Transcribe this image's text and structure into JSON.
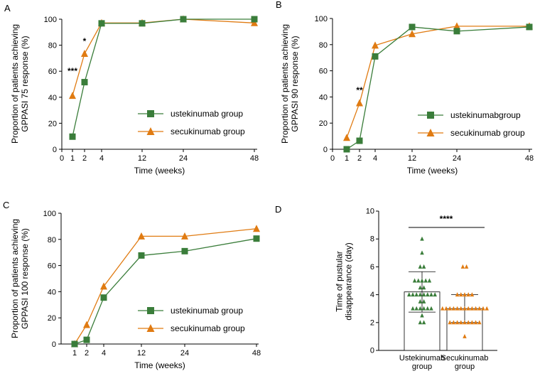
{
  "colors": {
    "ustekinumab": "#3a7d3a",
    "secukinumab": "#e07b12",
    "axis": "#000000"
  },
  "chart_data": [
    {
      "panel": "A",
      "type": "line",
      "ylabel": "Proportion of patients achieving\nGPPASI 75 response (%)",
      "xlabel": "Time (weeks)",
      "ylim": [
        0,
        100
      ],
      "y_ticks": [
        0,
        20,
        40,
        60,
        80,
        100
      ],
      "x_ticks": [
        0,
        1,
        2,
        4,
        12,
        24,
        48
      ],
      "x": [
        1,
        2,
        4,
        12,
        24,
        48
      ],
      "series": [
        {
          "name": "ustekinumab group",
          "marker": "square",
          "values": [
            9.7,
            51.6,
            96.8,
            96.8,
            100,
            100
          ]
        },
        {
          "name": "secukinumab group",
          "marker": "triangle",
          "values": [
            41.2,
            73.5,
            97.1,
            97.1,
            100,
            97.1
          ]
        }
      ],
      "annotations": [
        {
          "text": "***",
          "x": 1,
          "y": 60
        },
        {
          "text": "*",
          "x": 2,
          "y": 83
        }
      ],
      "legend": "bottom-right"
    },
    {
      "panel": "B",
      "type": "line",
      "ylabel": "Proportion of patients achieving\nGPPASI 90 response (%)",
      "xlabel": "Time (weeks)",
      "ylim": [
        0,
        100
      ],
      "y_ticks": [
        0,
        20,
        40,
        60,
        80,
        100
      ],
      "x_ticks": [
        0,
        1,
        2,
        4,
        12,
        24,
        48
      ],
      "x": [
        1,
        2,
        4,
        12,
        24,
        48
      ],
      "series": [
        {
          "name": "ustekinumabgroup",
          "marker": "square",
          "values": [
            0,
            6.5,
            71,
            93.5,
            90.3,
            93.5
          ]
        },
        {
          "name": "secukinumab group",
          "marker": "triangle",
          "values": [
            8.8,
            35.3,
            79.4,
            88.2,
            94.1,
            94.1
          ]
        }
      ],
      "annotations": [
        {
          "text": "**",
          "x": 2,
          "y": 45
        }
      ],
      "legend": "bottom-right"
    },
    {
      "panel": "C",
      "type": "line",
      "ylabel": "Proportion of patients achieving\nGPPASI 100 response (%)",
      "xlabel": "Time (weeks)",
      "ylim": [
        0,
        100
      ],
      "y_ticks": [
        0,
        20,
        40,
        60,
        80,
        100
      ],
      "x_ticks": [
        1,
        2,
        4,
        12,
        24,
        48
      ],
      "x": [
        1,
        2,
        4,
        12,
        24,
        48
      ],
      "series": [
        {
          "name": "ustekinumab group",
          "marker": "square",
          "values": [
            0,
            3.2,
            35.5,
            67.7,
            71,
            80.6
          ]
        },
        {
          "name": "secukinumab group",
          "marker": "triangle",
          "values": [
            0,
            14.7,
            44.1,
            82.4,
            82.4,
            88.2
          ]
        }
      ],
      "annotations": [],
      "legend": "bottom-right"
    },
    {
      "panel": "D",
      "type": "bar",
      "ylabel": "Time of pustular\ndisappearance  (day)",
      "ylim": [
        0,
        10
      ],
      "y_ticks": [
        0,
        2,
        4,
        6,
        8,
        10
      ],
      "categories": [
        "Ustekinumab\ngroup",
        "Secukinumab\ngroup"
      ],
      "values": [
        4.2,
        3.0
      ],
      "error": [
        1.45,
        1.0
      ],
      "points": [
        [
          8,
          7,
          6,
          6,
          5,
          5,
          5,
          5,
          5,
          4.5,
          4.5,
          4,
          4,
          4,
          4,
          4,
          4,
          4,
          4,
          3.5,
          3.5,
          3,
          3,
          3,
          3,
          3,
          3,
          2.5,
          2,
          2
        ],
        [
          6,
          6,
          4,
          4,
          4,
          4,
          4,
          3,
          3,
          3,
          3,
          3,
          3,
          3,
          3,
          3,
          3,
          3,
          3,
          3,
          2,
          2,
          2,
          2,
          2,
          2,
          2,
          2,
          2,
          1
        ]
      ],
      "significance": "****"
    }
  ]
}
